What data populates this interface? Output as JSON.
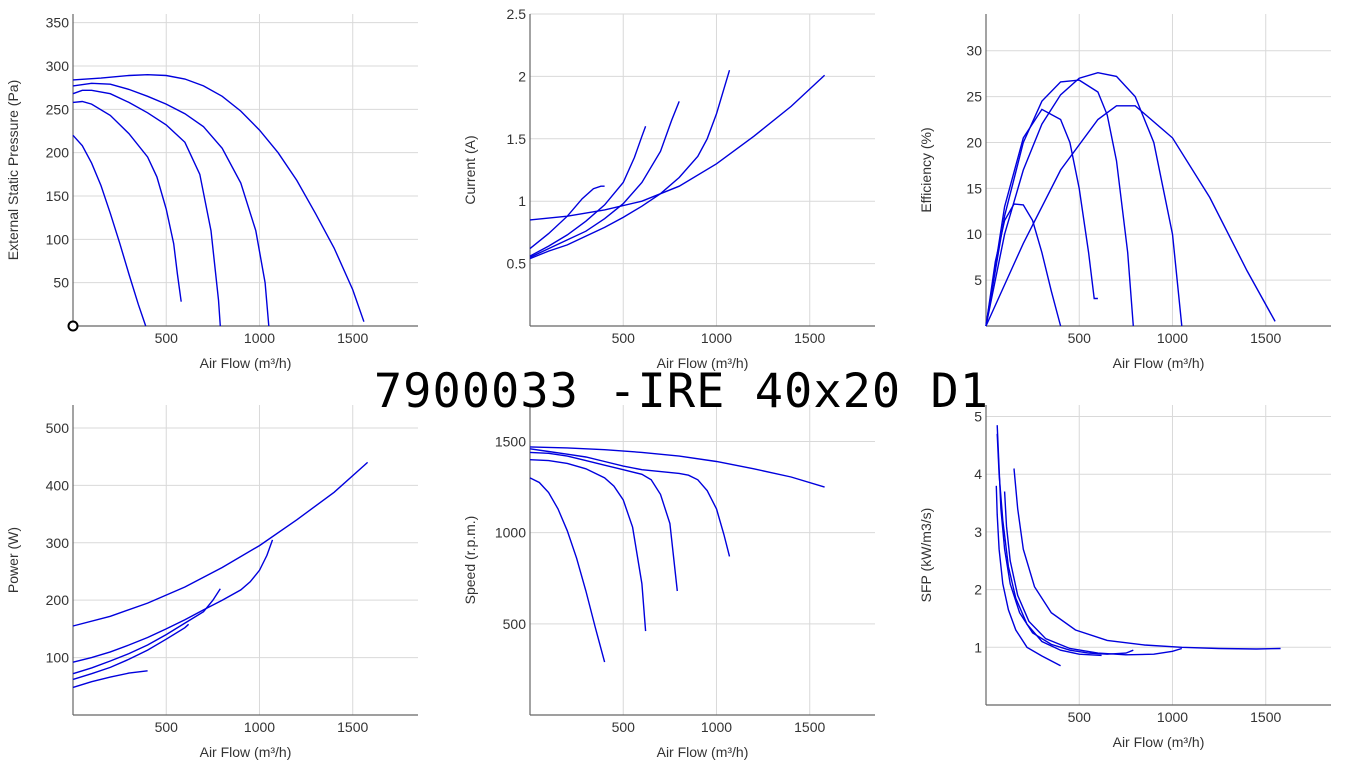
{
  "title": "7900033 -IRE 40x20 D1",
  "colors": {
    "curve": "#0000dd",
    "grid": "#d9d9d9",
    "axis": "#666666",
    "text": "#333333"
  },
  "chart_data": [
    {
      "type": "line",
      "xlabel": "Air Flow (m³/h)",
      "ylabel": "External Static Pressure (Pa)",
      "xlim": [
        0,
        1850
      ],
      "ylim": [
        0,
        360
      ],
      "xticks": [
        500,
        1000,
        1500
      ],
      "yticks": [
        50,
        100,
        150,
        200,
        250,
        300,
        350
      ],
      "origin_marker": true,
      "series": [
        {
          "x": [
            0,
            50,
            100,
            150,
            200,
            250,
            300,
            350,
            390
          ],
          "y": [
            220,
            208,
            188,
            162,
            130,
            96,
            60,
            25,
            0
          ]
        },
        {
          "x": [
            0,
            50,
            100,
            200,
            300,
            400,
            450,
            500,
            540,
            560,
            580
          ],
          "y": [
            258,
            259,
            256,
            243,
            222,
            195,
            172,
            135,
            95,
            60,
            28
          ]
        },
        {
          "x": [
            0,
            50,
            100,
            200,
            300,
            400,
            500,
            600,
            680,
            740,
            780,
            790
          ],
          "y": [
            268,
            272,
            272,
            268,
            258,
            246,
            232,
            212,
            175,
            110,
            30,
            0
          ]
        },
        {
          "x": [
            0,
            100,
            200,
            300,
            400,
            500,
            600,
            700,
            800,
            900,
            980,
            1030,
            1050
          ],
          "y": [
            277,
            280,
            279,
            273,
            265,
            256,
            245,
            230,
            205,
            165,
            110,
            50,
            0
          ]
        },
        {
          "x": [
            0,
            150,
            300,
            400,
            500,
            600,
            700,
            800,
            900,
            1000,
            1100,
            1200,
            1300,
            1400,
            1500,
            1560
          ],
          "y": [
            284,
            286,
            289,
            290,
            289,
            285,
            277,
            265,
            248,
            226,
            200,
            168,
            130,
            90,
            42,
            5
          ]
        }
      ]
    },
    {
      "type": "line",
      "xlabel": "Air Flow (m³/h)",
      "ylabel": "Current (A)",
      "xlim": [
        0,
        1850
      ],
      "ylim": [
        0,
        2.5
      ],
      "xticks": [
        500,
        1000,
        1500
      ],
      "yticks": [
        0.5,
        1,
        1.5,
        2,
        2.5
      ],
      "series": [
        {
          "x": [
            0,
            100,
            200,
            280,
            340,
            380,
            400
          ],
          "y": [
            0.62,
            0.74,
            0.88,
            1.02,
            1.1,
            1.12,
            1.12
          ]
        },
        {
          "x": [
            0,
            100,
            200,
            300,
            400,
            500,
            560,
            600,
            620
          ],
          "y": [
            0.56,
            0.64,
            0.73,
            0.84,
            0.97,
            1.15,
            1.35,
            1.52,
            1.6
          ]
        },
        {
          "x": [
            0,
            100,
            200,
            300,
            400,
            500,
            600,
            700,
            760,
            800
          ],
          "y": [
            0.55,
            0.62,
            0.69,
            0.76,
            0.86,
            0.98,
            1.15,
            1.4,
            1.65,
            1.8
          ]
        },
        {
          "x": [
            0,
            100,
            200,
            300,
            400,
            500,
            600,
            700,
            800,
            900,
            950,
            1000,
            1040,
            1070
          ],
          "y": [
            0.54,
            0.6,
            0.65,
            0.72,
            0.79,
            0.87,
            0.96,
            1.06,
            1.19,
            1.36,
            1.5,
            1.7,
            1.9,
            2.05
          ]
        },
        {
          "x": [
            0,
            200,
            400,
            600,
            800,
            1000,
            1200,
            1400,
            1580
          ],
          "y": [
            0.85,
            0.88,
            0.93,
            1.0,
            1.12,
            1.3,
            1.52,
            1.76,
            2.01
          ]
        }
      ]
    },
    {
      "type": "line",
      "xlabel": "Air Flow (m³/h)",
      "ylabel": "Efficiency (%)",
      "xlim": [
        0,
        1850
      ],
      "ylim": [
        0,
        34
      ],
      "xticks": [
        500,
        1000,
        1500
      ],
      "yticks": [
        5,
        10,
        15,
        20,
        25,
        30
      ],
      "series": [
        {
          "x": [
            0,
            50,
            100,
            150,
            200,
            250,
            300,
            350,
            400
          ],
          "y": [
            0,
            7,
            11.5,
            13.3,
            13.2,
            11.5,
            8,
            3.8,
            0
          ]
        },
        {
          "x": [
            0,
            100,
            200,
            300,
            400,
            450,
            500,
            550,
            580,
            600
          ],
          "y": [
            0,
            13,
            20.5,
            23.6,
            22.5,
            20,
            15,
            8,
            3,
            3
          ]
        },
        {
          "x": [
            0,
            100,
            200,
            300,
            400,
            500,
            600,
            650,
            700,
            760,
            790
          ],
          "y": [
            0,
            12,
            20,
            24.5,
            26.6,
            26.8,
            25.5,
            23,
            18,
            8,
            0
          ]
        },
        {
          "x": [
            0,
            100,
            200,
            300,
            400,
            500,
            600,
            700,
            800,
            900,
            1000,
            1050
          ],
          "y": [
            0,
            10,
            17,
            22,
            25.2,
            27,
            27.6,
            27.2,
            25,
            20,
            10,
            0
          ]
        },
        {
          "x": [
            0,
            200,
            400,
            600,
            700,
            800,
            1000,
            1200,
            1400,
            1550
          ],
          "y": [
            0,
            9,
            17,
            22.5,
            24,
            24,
            20.5,
            14,
            6,
            0.5
          ]
        }
      ]
    },
    {
      "type": "line",
      "xlabel": "Air Flow (m³/h)",
      "ylabel": "Power (W)",
      "xlim": [
        0,
        1850
      ],
      "ylim": [
        0,
        540
      ],
      "xticks": [
        500,
        1000,
        1500
      ],
      "yticks": [
        100,
        200,
        300,
        400,
        500
      ],
      "series": [
        {
          "x": [
            0,
            100,
            200,
            300,
            400
          ],
          "y": [
            48,
            58,
            66,
            73,
            77
          ]
        },
        {
          "x": [
            0,
            100,
            200,
            300,
            400,
            500,
            600,
            620
          ],
          "y": [
            62,
            72,
            83,
            97,
            113,
            132,
            152,
            158
          ]
        },
        {
          "x": [
            0,
            100,
            200,
            300,
            400,
            500,
            600,
            700,
            750,
            790
          ],
          "y": [
            72,
            82,
            94,
            107,
            122,
            140,
            160,
            180,
            200,
            220
          ]
        },
        {
          "x": [
            0,
            100,
            200,
            300,
            400,
            500,
            600,
            700,
            800,
            900,
            950,
            1000,
            1040,
            1070
          ],
          "y": [
            92,
            100,
            110,
            122,
            135,
            150,
            166,
            183,
            200,
            218,
            232,
            252,
            278,
            305
          ]
        },
        {
          "x": [
            0,
            200,
            400,
            600,
            800,
            1000,
            1200,
            1400,
            1580
          ],
          "y": [
            155,
            172,
            195,
            223,
            257,
            295,
            340,
            388,
            440
          ]
        }
      ]
    },
    {
      "type": "line",
      "xlabel": "Air Flow (m³/h)",
      "ylabel": "Speed (r.p.m.)",
      "xlim": [
        0,
        1850
      ],
      "ylim": [
        0,
        1700
      ],
      "xticks": [
        500,
        1000,
        1500
      ],
      "yticks": [
        500,
        1000,
        1500
      ],
      "series": [
        {
          "x": [
            0,
            50,
            100,
            150,
            200,
            250,
            300,
            350,
            400
          ],
          "y": [
            1300,
            1275,
            1220,
            1130,
            1010,
            860,
            680,
            480,
            290
          ]
        },
        {
          "x": [
            0,
            100,
            200,
            300,
            400,
            450,
            500,
            550,
            600,
            620
          ],
          "y": [
            1400,
            1395,
            1380,
            1350,
            1300,
            1255,
            1180,
            1030,
            720,
            460
          ]
        },
        {
          "x": [
            0,
            100,
            200,
            300,
            400,
            500,
            600,
            650,
            700,
            750,
            790
          ],
          "y": [
            1440,
            1435,
            1420,
            1395,
            1370,
            1345,
            1320,
            1290,
            1210,
            1050,
            680
          ]
        },
        {
          "x": [
            0,
            100,
            200,
            300,
            400,
            500,
            600,
            700,
            800,
            850,
            900,
            950,
            1000,
            1040,
            1070
          ],
          "y": [
            1460,
            1445,
            1430,
            1415,
            1390,
            1365,
            1345,
            1335,
            1325,
            1315,
            1290,
            1230,
            1130,
            990,
            870
          ]
        },
        {
          "x": [
            0,
            200,
            400,
            600,
            800,
            1000,
            1200,
            1400,
            1580
          ],
          "y": [
            1470,
            1465,
            1455,
            1440,
            1420,
            1390,
            1350,
            1305,
            1250
          ]
        }
      ]
    },
    {
      "type": "line",
      "xlabel": "Air Flow (m³/h)",
      "ylabel": "SFP (kW/m3/s)",
      "xlim": [
        0,
        1850
      ],
      "ylim": [
        0,
        5.2
      ],
      "xticks": [
        500,
        1000,
        1500
      ],
      "yticks": [
        1,
        2,
        3,
        4,
        5
      ],
      "series": [
        {
          "x": [
            55,
            60,
            70,
            90,
            120,
            160,
            220,
            300,
            400
          ],
          "y": [
            3.8,
            3.3,
            2.7,
            2.1,
            1.65,
            1.3,
            1.0,
            0.85,
            0.68
          ]
        },
        {
          "x": [
            60,
            70,
            90,
            120,
            160,
            220,
            300,
            400,
            500,
            620
          ],
          "y": [
            4.7,
            4.0,
            3.2,
            2.4,
            1.85,
            1.4,
            1.1,
            0.95,
            0.88,
            0.86
          ]
        },
        {
          "x": [
            60,
            70,
            80,
            100,
            130,
            180,
            250,
            350,
            450,
            550,
            650,
            750,
            790
          ],
          "y": [
            4.85,
            4.1,
            3.4,
            2.7,
            2.1,
            1.6,
            1.25,
            1.05,
            0.95,
            0.9,
            0.88,
            0.9,
            0.95
          ]
        },
        {
          "x": [
            100,
            110,
            130,
            170,
            230,
            320,
            450,
            600,
            750,
            900,
            1000,
            1050
          ],
          "y": [
            3.7,
            3.1,
            2.5,
            1.9,
            1.45,
            1.15,
            0.98,
            0.9,
            0.87,
            0.88,
            0.93,
            0.98
          ]
        },
        {
          "x": [
            150,
            170,
            200,
            260,
            350,
            480,
            650,
            850,
            1050,
            1250,
            1450,
            1580
          ],
          "y": [
            4.1,
            3.4,
            2.7,
            2.05,
            1.6,
            1.3,
            1.12,
            1.04,
            1.0,
            0.98,
            0.97,
            0.98
          ]
        }
      ]
    }
  ]
}
